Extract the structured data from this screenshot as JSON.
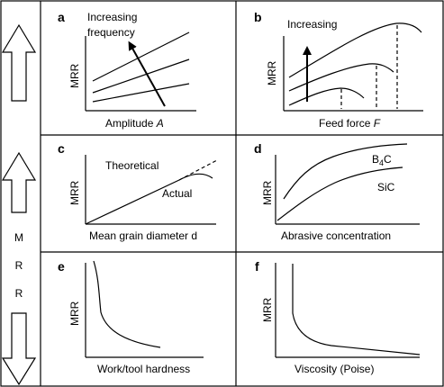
{
  "sidebar": {
    "label_letters": [
      "M",
      "R",
      "R"
    ]
  },
  "panels": [
    {
      "letter": "a",
      "ylabel": "MRR",
      "xlabel": "Amplitude",
      "xlabel_symbol": "A",
      "annotation_line1": "Increasing",
      "annotation_line2": "frequency"
    },
    {
      "letter": "b",
      "ylabel": "MRR",
      "xlabel": "Feed force",
      "xlabel_symbol": "F",
      "annotation_line1": "Increasing"
    },
    {
      "letter": "c",
      "ylabel": "MRR",
      "xlabel": "Mean grain diameter d",
      "annotation_theoretical": "Theoretical",
      "annotation_actual": "Actual"
    },
    {
      "letter": "d",
      "ylabel": "MRR",
      "xlabel": "Abrasive concentration",
      "series_top_base": "B",
      "series_top_sub": "4",
      "series_top_tail": "C",
      "series_bottom": "SiC"
    },
    {
      "letter": "e",
      "ylabel": "MRR",
      "xlabel": "Work/tool hardness"
    },
    {
      "letter": "f",
      "ylabel": "MRR",
      "xlabel": "Viscosity (Poise)"
    }
  ],
  "colors": {
    "ink": "#000000",
    "background": "#ffffff"
  }
}
